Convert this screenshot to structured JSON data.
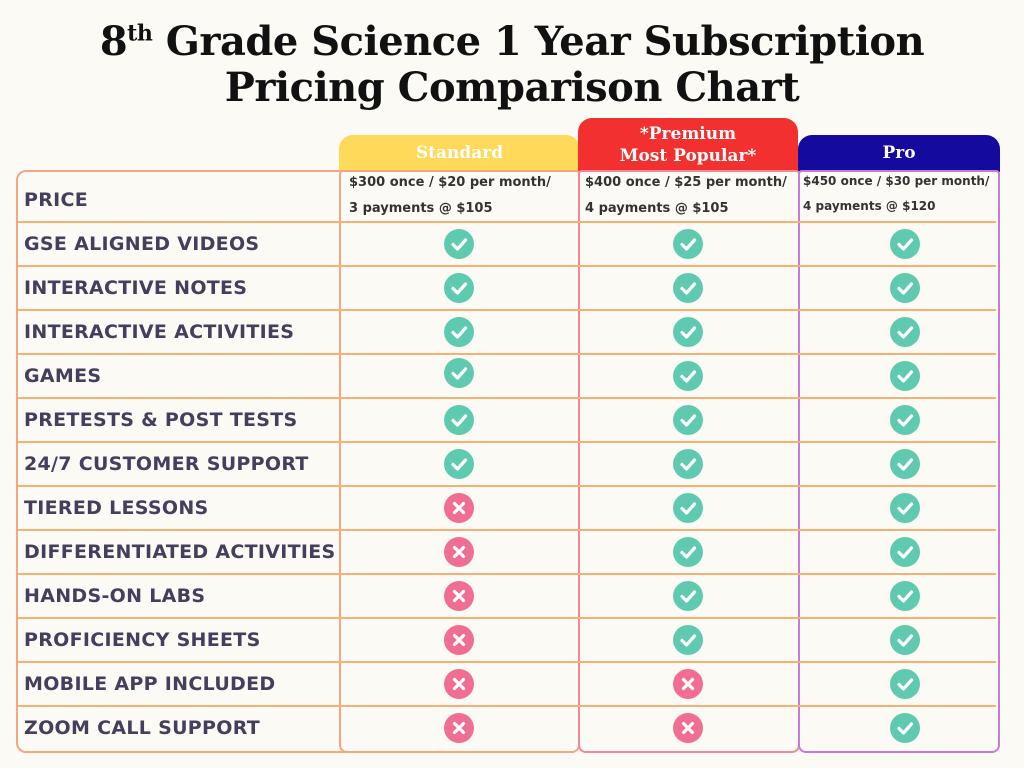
{
  "title": {
    "line1_prefix": "8",
    "line1_sup": "th",
    "line1_rest": " Grade Science 1 Year Subscription",
    "line2": "Pricing Comparison Chart"
  },
  "plans": [
    {
      "name_line1": "Standard",
      "name_line2": "",
      "price_line1": "$300 once / $20 per month/",
      "price_line2": "3 payments @ $105"
    },
    {
      "name_line1": "*Premium",
      "name_line2": "Most Popular*",
      "price_line1": "$400 once / $25 per month/",
      "price_line2": "4 payments @ $105"
    },
    {
      "name_line1": "Pro",
      "name_line2": "",
      "price_line1": "$450 once / $30 per month/",
      "price_line2": "4 payments @ $120"
    }
  ],
  "price_label": "PRICE",
  "features": [
    {
      "label": "GSE ALIGNED VIDEOS",
      "standard": true,
      "premium": true,
      "pro": true
    },
    {
      "label": "INTERACTIVE NOTES",
      "standard": true,
      "premium": true,
      "pro": true
    },
    {
      "label": "INTERACTIVE ACTIVITIES",
      "standard": true,
      "premium": true,
      "pro": true
    },
    {
      "label": "GAMES",
      "standard": true,
      "premium": true,
      "pro": true
    },
    {
      "label": "PRETESTS & POST TESTS",
      "standard": true,
      "premium": true,
      "pro": true
    },
    {
      "label": "24/7 CUSTOMER SUPPORT",
      "standard": true,
      "premium": true,
      "pro": true
    },
    {
      "label": "TIERED LESSONS",
      "standard": false,
      "premium": true,
      "pro": true
    },
    {
      "label": "DIFFERENTIATED ACTIVITIES",
      "standard": false,
      "premium": true,
      "pro": true
    },
    {
      "label": "HANDS-ON LABS",
      "standard": false,
      "premium": true,
      "pro": true
    },
    {
      "label": "PROFICIENCY SHEETS",
      "standard": false,
      "premium": true,
      "pro": true
    },
    {
      "label": "MOBILE APP INCLUDED",
      "standard": false,
      "premium": false,
      "pro": true
    },
    {
      "label": "ZOOM CALL SUPPORT",
      "standard": false,
      "premium": false,
      "pro": true
    }
  ],
  "colors": {
    "yes": "#5fcab0",
    "no": "#f06e91",
    "standard": "#ffd95a",
    "premium": "#f2302f",
    "pro": "#150a9e"
  },
  "icons": {
    "yes": "check-circle-icon",
    "no": "x-circle-icon"
  }
}
